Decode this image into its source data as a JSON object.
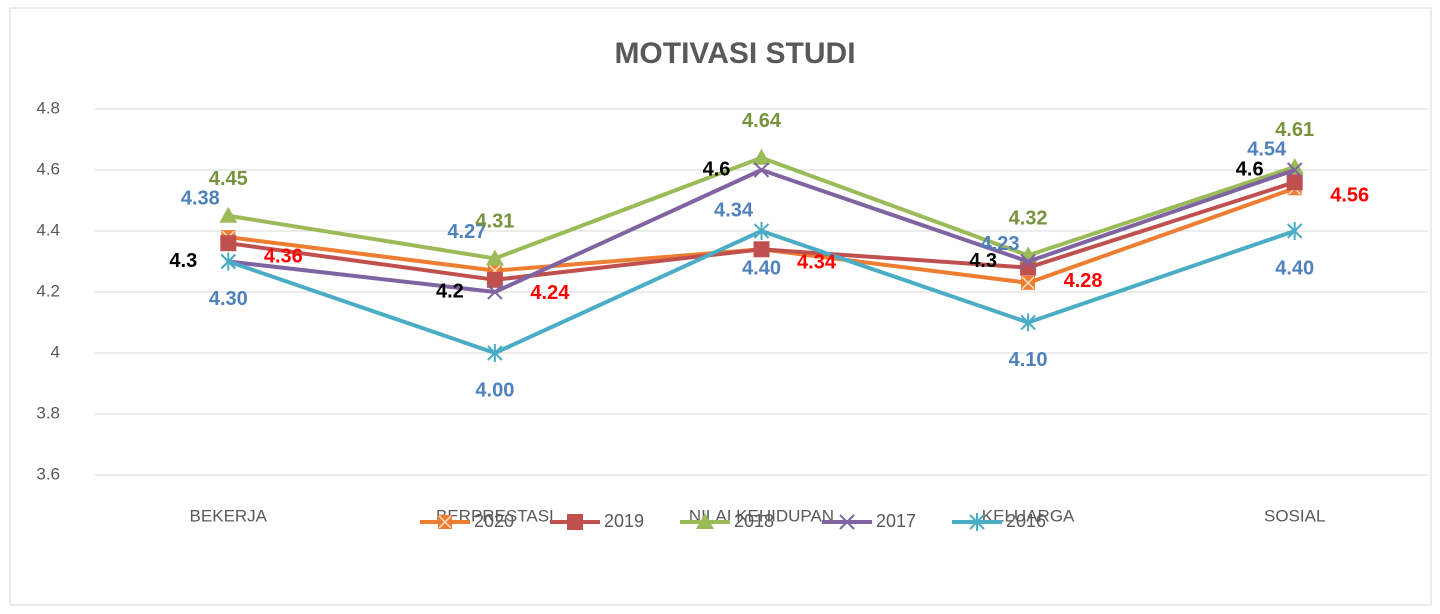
{
  "chart_data": {
    "type": "line",
    "title": "MOTIVASI STUDI",
    "categories": [
      "BEKERJA",
      "BERPRESTASI",
      "NILAI KEHIDUPAN",
      "KELUARGA",
      "SOSIAL"
    ],
    "ylim": [
      3.6,
      4.8
    ],
    "yticks": [
      3.6,
      3.8,
      4,
      4.2,
      4.4,
      4.6,
      4.8
    ],
    "grid": true,
    "legend": "bottom",
    "series": [
      {
        "name": "2020",
        "color": "#ED7D31",
        "values": [
          4.38,
          4.27,
          4.34,
          4.23,
          4.54
        ],
        "value_labels": [
          "4.38",
          "4.27",
          "4.34",
          "4.23",
          "4.54"
        ]
      },
      {
        "name": "2019",
        "color": "#C0504D",
        "values": [
          4.36,
          4.24,
          4.34,
          4.28,
          4.56
        ],
        "value_labels": [
          "4.36",
          "4.24",
          "4.34",
          "4.28",
          "4.56"
        ]
      },
      {
        "name": "2018",
        "color": "#9BBB59",
        "values": [
          4.45,
          4.31,
          4.64,
          4.32,
          4.61
        ],
        "value_labels": [
          "4.45",
          "4.31",
          "4.64",
          "4.32",
          "4.61"
        ]
      },
      {
        "name": "2017",
        "color": "#8064A2",
        "values": [
          4.3,
          4.2,
          4.6,
          4.3,
          4.6
        ]
      },
      {
        "name": "2016",
        "color": "#4BACC6",
        "values": [
          4.3,
          4.0,
          4.4,
          4.1,
          4.4
        ],
        "value_labels": [
          "4.30",
          "4.00",
          "4.40",
          "4.10",
          "4.40"
        ]
      }
    ]
  }
}
